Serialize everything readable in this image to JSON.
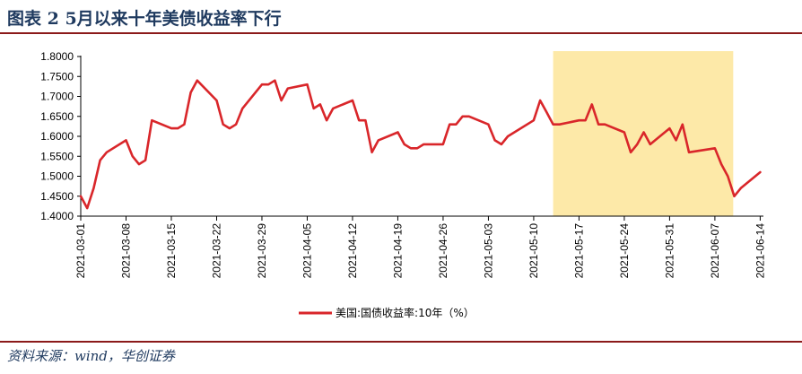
{
  "header": {
    "title": "图表 2   5月以来十年美债收益率下行"
  },
  "footer": {
    "source": "资料来源：wind，华创证券"
  },
  "chart_data": {
    "type": "line",
    "title": "",
    "xlabel": "",
    "ylabel": "",
    "ylim": [
      1.4,
      1.8
    ],
    "yticks": [
      "1.4000",
      "1.4500",
      "1.5000",
      "1.5500",
      "1.6000",
      "1.6500",
      "1.7000",
      "1.7500",
      "1.8000"
    ],
    "xticks": [
      "2021-03-01",
      "2021-03-08",
      "2021-03-15",
      "2021-03-22",
      "2021-03-29",
      "2021-04-05",
      "2021-04-12",
      "2021-04-19",
      "2021-04-26",
      "2021-05-03",
      "2021-05-10",
      "2021-05-17",
      "2021-05-24",
      "2021-05-31",
      "2021-06-07",
      "2021-06-14"
    ],
    "x_start": "2021-03-01",
    "highlight": {
      "from": "2021-05-13",
      "to": "2021-06-09",
      "color": "#fde9a8"
    },
    "legend": {
      "placement": "bottom",
      "text": "美国:国债收益率:10年（%）"
    },
    "series": [
      {
        "name": "美国:国债收益率:10年（%）",
        "color": "#d9262a",
        "points": [
          [
            "2021-03-01",
            1.45
          ],
          [
            "2021-03-02",
            1.42
          ],
          [
            "2021-03-03",
            1.47
          ],
          [
            "2021-03-04",
            1.54
          ],
          [
            "2021-03-05",
            1.56
          ],
          [
            "2021-03-08",
            1.59
          ],
          [
            "2021-03-09",
            1.55
          ],
          [
            "2021-03-10",
            1.53
          ],
          [
            "2021-03-11",
            1.54
          ],
          [
            "2021-03-12",
            1.64
          ],
          [
            "2021-03-15",
            1.62
          ],
          [
            "2021-03-16",
            1.62
          ],
          [
            "2021-03-17",
            1.63
          ],
          [
            "2021-03-18",
            1.71
          ],
          [
            "2021-03-19",
            1.74
          ],
          [
            "2021-03-22",
            1.69
          ],
          [
            "2021-03-23",
            1.63
          ],
          [
            "2021-03-24",
            1.62
          ],
          [
            "2021-03-25",
            1.63
          ],
          [
            "2021-03-26",
            1.67
          ],
          [
            "2021-03-29",
            1.73
          ],
          [
            "2021-03-30",
            1.73
          ],
          [
            "2021-03-31",
            1.74
          ],
          [
            "2021-04-01",
            1.69
          ],
          [
            "2021-04-02",
            1.72
          ],
          [
            "2021-04-05",
            1.73
          ],
          [
            "2021-04-06",
            1.67
          ],
          [
            "2021-04-07",
            1.68
          ],
          [
            "2021-04-08",
            1.64
          ],
          [
            "2021-04-09",
            1.67
          ],
          [
            "2021-04-12",
            1.69
          ],
          [
            "2021-04-13",
            1.64
          ],
          [
            "2021-04-14",
            1.64
          ],
          [
            "2021-04-15",
            1.56
          ],
          [
            "2021-04-16",
            1.59
          ],
          [
            "2021-04-19",
            1.61
          ],
          [
            "2021-04-20",
            1.58
          ],
          [
            "2021-04-21",
            1.57
          ],
          [
            "2021-04-22",
            1.57
          ],
          [
            "2021-04-23",
            1.58
          ],
          [
            "2021-04-26",
            1.58
          ],
          [
            "2021-04-27",
            1.63
          ],
          [
            "2021-04-28",
            1.63
          ],
          [
            "2021-04-29",
            1.65
          ],
          [
            "2021-04-30",
            1.65
          ],
          [
            "2021-05-03",
            1.63
          ],
          [
            "2021-05-04",
            1.59
          ],
          [
            "2021-05-05",
            1.58
          ],
          [
            "2021-05-06",
            1.6
          ],
          [
            "2021-05-10",
            1.64
          ],
          [
            "2021-05-11",
            1.69
          ],
          [
            "2021-05-12",
            1.66
          ],
          [
            "2021-05-13",
            1.63
          ],
          [
            "2021-05-14",
            1.63
          ],
          [
            "2021-05-17",
            1.64
          ],
          [
            "2021-05-18",
            1.64
          ],
          [
            "2021-05-19",
            1.68
          ],
          [
            "2021-05-20",
            1.63
          ],
          [
            "2021-05-21",
            1.63
          ],
          [
            "2021-05-24",
            1.61
          ],
          [
            "2021-05-25",
            1.56
          ],
          [
            "2021-05-26",
            1.58
          ],
          [
            "2021-05-27",
            1.61
          ],
          [
            "2021-05-28",
            1.58
          ],
          [
            "2021-05-31",
            1.62
          ],
          [
            "2021-06-01",
            1.59
          ],
          [
            "2021-06-02",
            1.63
          ],
          [
            "2021-06-03",
            1.56
          ],
          [
            "2021-06-07",
            1.57
          ],
          [
            "2021-06-08",
            1.53
          ],
          [
            "2021-06-09",
            1.5
          ],
          [
            "2021-06-10",
            1.45
          ],
          [
            "2021-06-11",
            1.47
          ],
          [
            "2021-06-14",
            1.51
          ]
        ]
      }
    ]
  }
}
